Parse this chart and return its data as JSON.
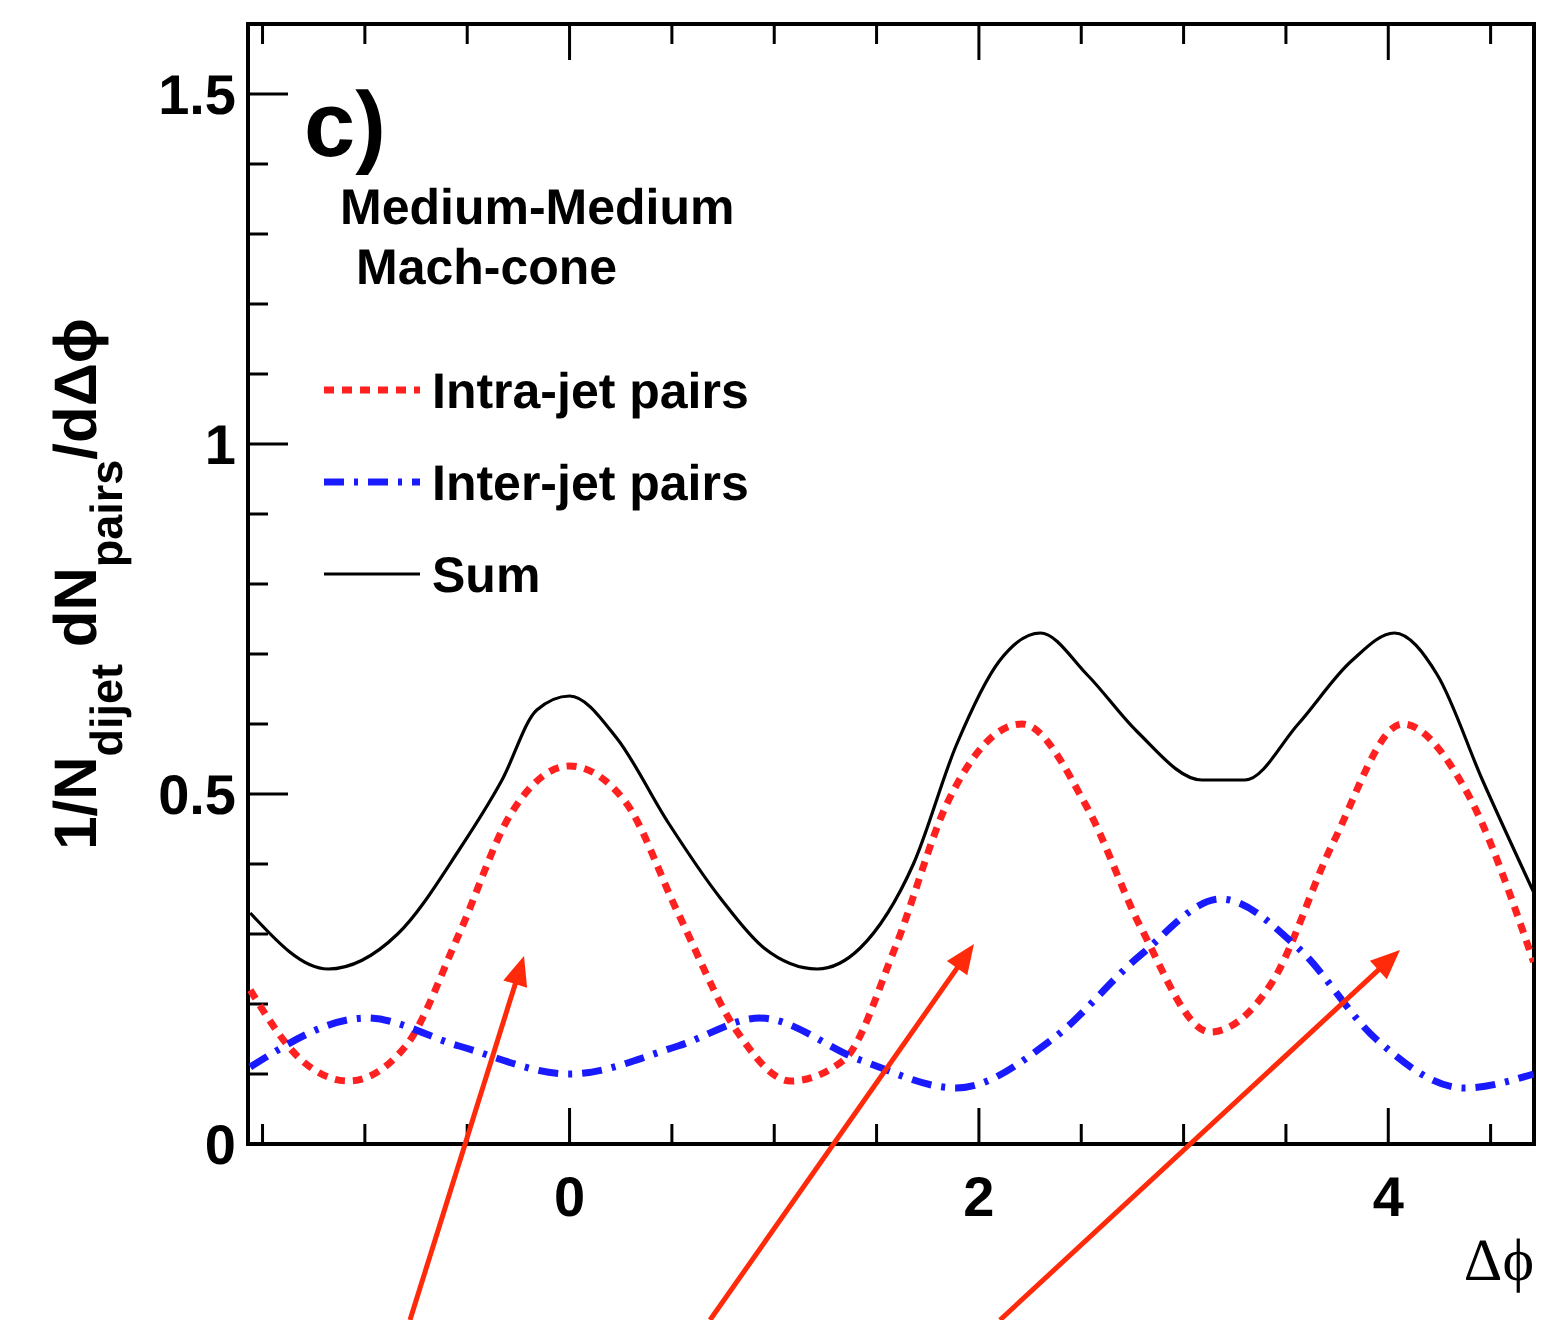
{
  "chart_data": {
    "type": "line",
    "title": "c)",
    "annotations": [
      "Medium-Medium",
      "Mach-cone"
    ],
    "xlabel": "Δϕ",
    "ylabel": "1/N$_{dijet}$ dN$_{pairs}$/dΔϕ",
    "xlim": [
      -1.571,
      4.712
    ],
    "ylim": [
      0,
      1.6
    ],
    "xticks": [
      {
        "value": -1.5,
        "label": null
      },
      {
        "value": -1,
        "label": null
      },
      {
        "value": -0.5,
        "label": null
      },
      0,
      {
        "value": 0.5,
        "label": null
      },
      {
        "value": 1,
        "label": null
      },
      {
        "value": 1.5,
        "label": null
      },
      2,
      {
        "value": 2.5,
        "label": null
      },
      {
        "value": 3,
        "label": null
      },
      {
        "value": 3.5,
        "label": null
      },
      4,
      {
        "value": 4.5,
        "label": null
      }
    ],
    "yticks": [
      0,
      {
        "value": 0.1,
        "label": null
      },
      {
        "value": 0.2,
        "label": null
      },
      {
        "value": 0.3,
        "label": null
      },
      {
        "value": 0.4,
        "label": null
      },
      0.5,
      {
        "value": 0.6,
        "label": null
      },
      {
        "value": 0.7,
        "label": null
      },
      {
        "value": 0.8,
        "label": null
      },
      {
        "value": 0.9,
        "label": null
      },
      1,
      {
        "value": 1.1,
        "label": null
      },
      {
        "value": 1.2,
        "label": null
      },
      {
        "value": 1.3,
        "label": null
      },
      {
        "value": 1.4,
        "label": null
      },
      1.5
    ],
    "grid": false,
    "legend": "top left",
    "series": [
      {
        "name": "Intra-jet pairs",
        "color": "#ff2020",
        "line_style": "dotted",
        "x": [
          -1.56,
          -1.31,
          -1.08,
          -0.8,
          -0.54,
          -0.29,
          0,
          0.27,
          0.53,
          0.82,
          1.08,
          1.34,
          1.59,
          1.85,
          2.21,
          2.53,
          2.79,
          3.13,
          3.43,
          3.73,
          4.07,
          4.37,
          4.71
        ],
        "values": [
          0.22,
          0.12,
          0.09,
          0.14,
          0.3,
          0.47,
          0.54,
          0.49,
          0.33,
          0.16,
          0.09,
          0.12,
          0.28,
          0.49,
          0.6,
          0.48,
          0.31,
          0.16,
          0.23,
          0.43,
          0.6,
          0.51,
          0.26
        ]
      },
      {
        "name": "Inter-jet pairs",
        "color": "#1a1aff",
        "line_style": "dashdot",
        "x": [
          -1.56,
          -0.99,
          -0.54,
          0,
          0.53,
          0.93,
          1.42,
          1.89,
          2.36,
          2.79,
          3.18,
          3.56,
          3.94,
          4.37,
          4.71
        ],
        "values": [
          0.11,
          0.18,
          0.14,
          0.1,
          0.14,
          0.18,
          0.12,
          0.08,
          0.15,
          0.27,
          0.35,
          0.28,
          0.15,
          0.08,
          0.1
        ]
      },
      {
        "name": "Sum",
        "color": "#000000",
        "line_style": "solid",
        "x": [
          -1.56,
          -1.18,
          -0.84,
          -0.54,
          -0.33,
          -0.16,
          0,
          0.23,
          0.48,
          0.74,
          0.95,
          1.21,
          1.42,
          1.68,
          1.89,
          2.1,
          2.3,
          2.53,
          2.77,
          3.09,
          3.3,
          3.56,
          3.82,
          4.03,
          4.24,
          4.46,
          4.71
        ],
        "values": [
          0.33,
          0.25,
          0.3,
          0.42,
          0.52,
          0.62,
          0.64,
          0.58,
          0.46,
          0.35,
          0.28,
          0.25,
          0.28,
          0.4,
          0.57,
          0.69,
          0.73,
          0.67,
          0.59,
          0.52,
          0.52,
          0.6,
          0.69,
          0.73,
          0.67,
          0.52,
          0.36
        ]
      }
    ]
  }
}
